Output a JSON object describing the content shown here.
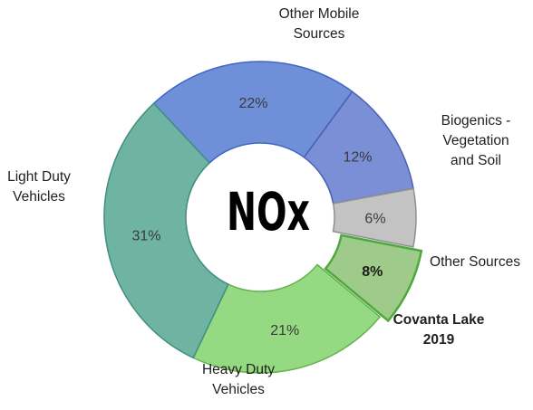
{
  "chart_data": {
    "type": "pie",
    "center_label": "NOx",
    "slices": [
      {
        "label": [
          "Other Mobile",
          "Sources"
        ],
        "value_label": "22%",
        "value": 22,
        "color": "#6f8fd9",
        "stroke": "#3f66c2",
        "exploded": false,
        "bold": false
      },
      {
        "label": [
          "Biogenics -",
          "Vegetation",
          "and Soil"
        ],
        "value_label": "12%",
        "value": 12,
        "color": "#7b8fd6",
        "stroke": "#4a60b0",
        "exploded": false,
        "bold": false
      },
      {
        "label": [
          "Other Sources"
        ],
        "value_label": "6%",
        "value": 6,
        "color": "#c3c3c3",
        "stroke": "#8f8f8f",
        "exploded": false,
        "bold": false
      },
      {
        "label": [
          "Covanta Lake",
          "2019"
        ],
        "value_label": "8%",
        "value": 8,
        "color": "#9fcb8a",
        "stroke": "#4ea83c",
        "exploded": true,
        "bold": true
      },
      {
        "label": [
          "Heavy Duty",
          "Vehicles"
        ],
        "value_label": "21%",
        "value": 21,
        "color": "#95d982",
        "stroke": "#62b34f",
        "exploded": false,
        "bold": false
      },
      {
        "label": [
          "Light Duty",
          "Vehicles"
        ],
        "value_label": "31%",
        "value": 31,
        "color": "#6fb3a3",
        "stroke": "#3f8f7f",
        "exploded": false,
        "bold": false
      }
    ]
  }
}
